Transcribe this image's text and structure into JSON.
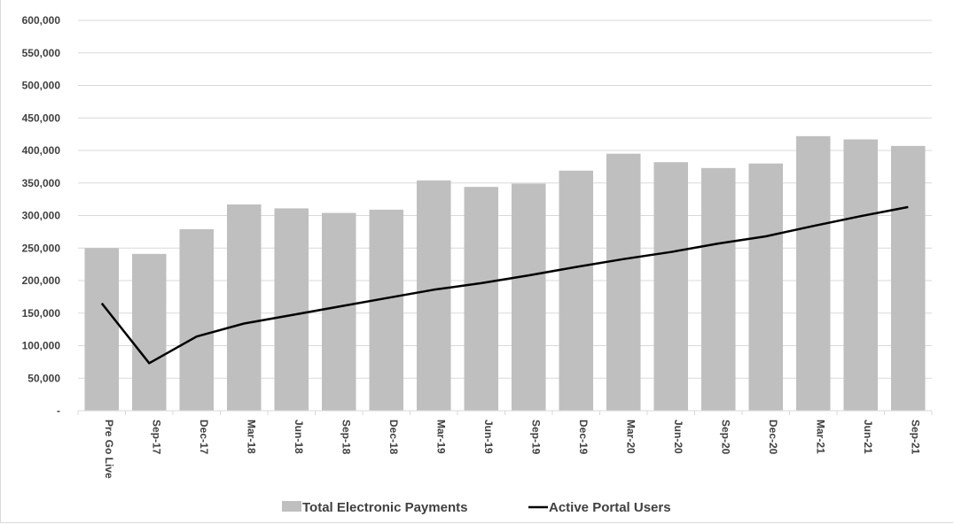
{
  "chart_data": {
    "type": "bar",
    "title": "",
    "xlabel": "",
    "ylabel": "",
    "ylim": [
      0,
      600000
    ],
    "ytick_values": [
      0,
      50000,
      100000,
      150000,
      200000,
      250000,
      300000,
      350000,
      400000,
      450000,
      500000,
      550000,
      600000
    ],
    "ytick_labels": [
      "-",
      "50,000",
      "100,000",
      "150,000",
      "200,000",
      "250,000",
      "300,000",
      "350,000",
      "400,000",
      "450,000",
      "500,000",
      "550,000",
      "600,000"
    ],
    "grid": true,
    "legend_position": "bottom",
    "categories": [
      "Pre Go Live",
      "Sep-17",
      "Dec-17",
      "Mar-18",
      "Jun-18",
      "Sep-18",
      "Dec-18",
      "Mar-19",
      "Jun-19",
      "Sep-19",
      "Dec-19",
      "Mar-20",
      "Jun-20",
      "Sep-20",
      "Dec-20",
      "Mar-21",
      "Jun-21",
      "Sep-21"
    ],
    "series": [
      {
        "name": "Total Electronic Payments",
        "type": "bar",
        "color": "#bfbfbf",
        "values": [
          250000,
          241000,
          279000,
          317000,
          311000,
          304000,
          309000,
          354000,
          344000,
          349000,
          369000,
          395000,
          382000,
          373000,
          380000,
          422000,
          417000,
          407000
        ]
      },
      {
        "name": "Active Portal Users",
        "type": "line",
        "color": "#000000",
        "values": [
          165000,
          73000,
          114000,
          134000,
          147000,
          160000,
          173000,
          186000,
          196000,
          208000,
          221000,
          233000,
          244000,
          257000,
          268000,
          284000,
          299000,
          313000
        ]
      }
    ]
  }
}
